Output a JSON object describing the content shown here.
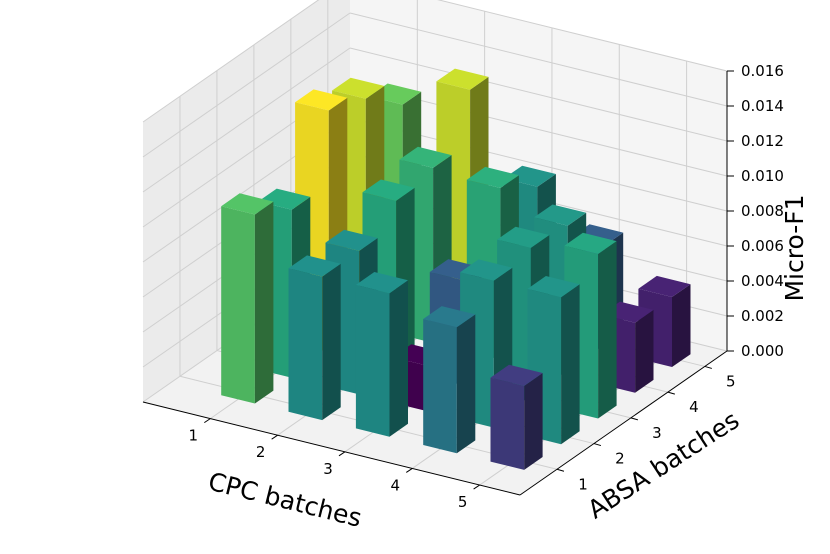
{
  "chart_data": {
    "type": "bar3d",
    "x_label": "CPC batches",
    "y_label": "ABSA batches",
    "z_label": "Micro-F1",
    "x_categories": [
      "1",
      "2",
      "3",
      "4",
      "5"
    ],
    "y_categories": [
      "1",
      "2",
      "3",
      "4",
      "5"
    ],
    "z_ticks": [
      "0.000",
      "0.002",
      "0.004",
      "0.006",
      "0.008",
      "0.010",
      "0.012",
      "0.014",
      "0.016"
    ],
    "zlim": [
      0,
      0.016
    ],
    "colormap": "viridis",
    "grid": true,
    "bars": [
      {
        "x": 1,
        "y": 1,
        "z": 0.0108
      },
      {
        "x": 1,
        "y": 2,
        "z": 0.0096
      },
      {
        "x": 1,
        "y": 3,
        "z": 0.0138
      },
      {
        "x": 1,
        "y": 4,
        "z": 0.013
      },
      {
        "x": 1,
        "y": 5,
        "z": 0.0112
      },
      {
        "x": 2,
        "y": 1,
        "z": 0.0082
      },
      {
        "x": 2,
        "y": 2,
        "z": 0.0082
      },
      {
        "x": 2,
        "y": 3,
        "z": 0.0096
      },
      {
        "x": 2,
        "y": 4,
        "z": 0.01
      },
      {
        "x": 2,
        "y": 5,
        "z": 0.013
      },
      {
        "x": 3,
        "y": 1,
        "z": 0.0082
      },
      {
        "x": 3,
        "y": 2,
        "z": 0.0026
      },
      {
        "x": 3,
        "y": 3,
        "z": 0.006
      },
      {
        "x": 3,
        "y": 4,
        "z": 0.0098
      },
      {
        "x": 3,
        "y": 5,
        "z": 0.0084
      },
      {
        "x": 4,
        "y": 1,
        "z": 0.0072
      },
      {
        "x": 4,
        "y": 2,
        "z": 0.0084
      },
      {
        "x": 4,
        "y": 3,
        "z": 0.0088
      },
      {
        "x": 4,
        "y": 4,
        "z": 0.0086
      },
      {
        "x": 4,
        "y": 5,
        "z": 0.006
      },
      {
        "x": 5,
        "y": 1,
        "z": 0.0048
      },
      {
        "x": 5,
        "y": 2,
        "z": 0.0084
      },
      {
        "x": 5,
        "y": 3,
        "z": 0.0094
      },
      {
        "x": 5,
        "y": 4,
        "z": 0.004
      },
      {
        "x": 5,
        "y": 5,
        "z": 0.004
      }
    ]
  }
}
